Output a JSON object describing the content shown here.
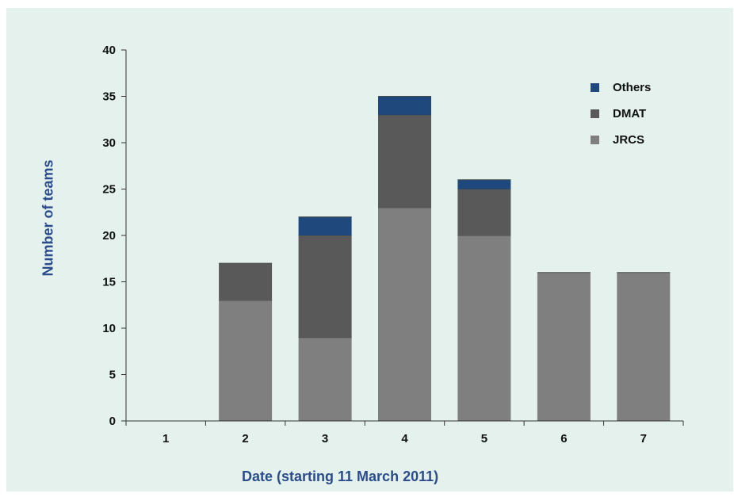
{
  "colors": {
    "background": "#e4f1ec",
    "axis": "#333333",
    "axis_title": "#2b4c8c"
  },
  "chart_data": {
    "type": "bar",
    "stacked": true,
    "title": "",
    "xlabel": "Date (starting 11 March 2011)",
    "ylabel": "Number of teams",
    "categories": [
      "1",
      "2",
      "3",
      "4",
      "5",
      "6",
      "7"
    ],
    "ylim": [
      0,
      40
    ],
    "yticks": [
      "0",
      "5",
      "10",
      "15",
      "20",
      "25",
      "30",
      "35",
      "40"
    ],
    "grid": false,
    "legend_position": "top-right",
    "series": [
      {
        "name": "JRCS",
        "color": "#7f7f7f",
        "values": [
          0,
          13,
          9,
          23,
          20,
          16,
          16
        ]
      },
      {
        "name": "DMAT",
        "color": "#595959",
        "values": [
          0,
          4,
          11,
          10,
          5,
          0,
          0
        ]
      },
      {
        "name": "Others",
        "color": "#1f497d",
        "values": [
          0,
          0,
          2,
          2,
          1,
          0,
          0
        ]
      }
    ],
    "legend_order": [
      "Others",
      "DMAT",
      "JRCS"
    ]
  }
}
